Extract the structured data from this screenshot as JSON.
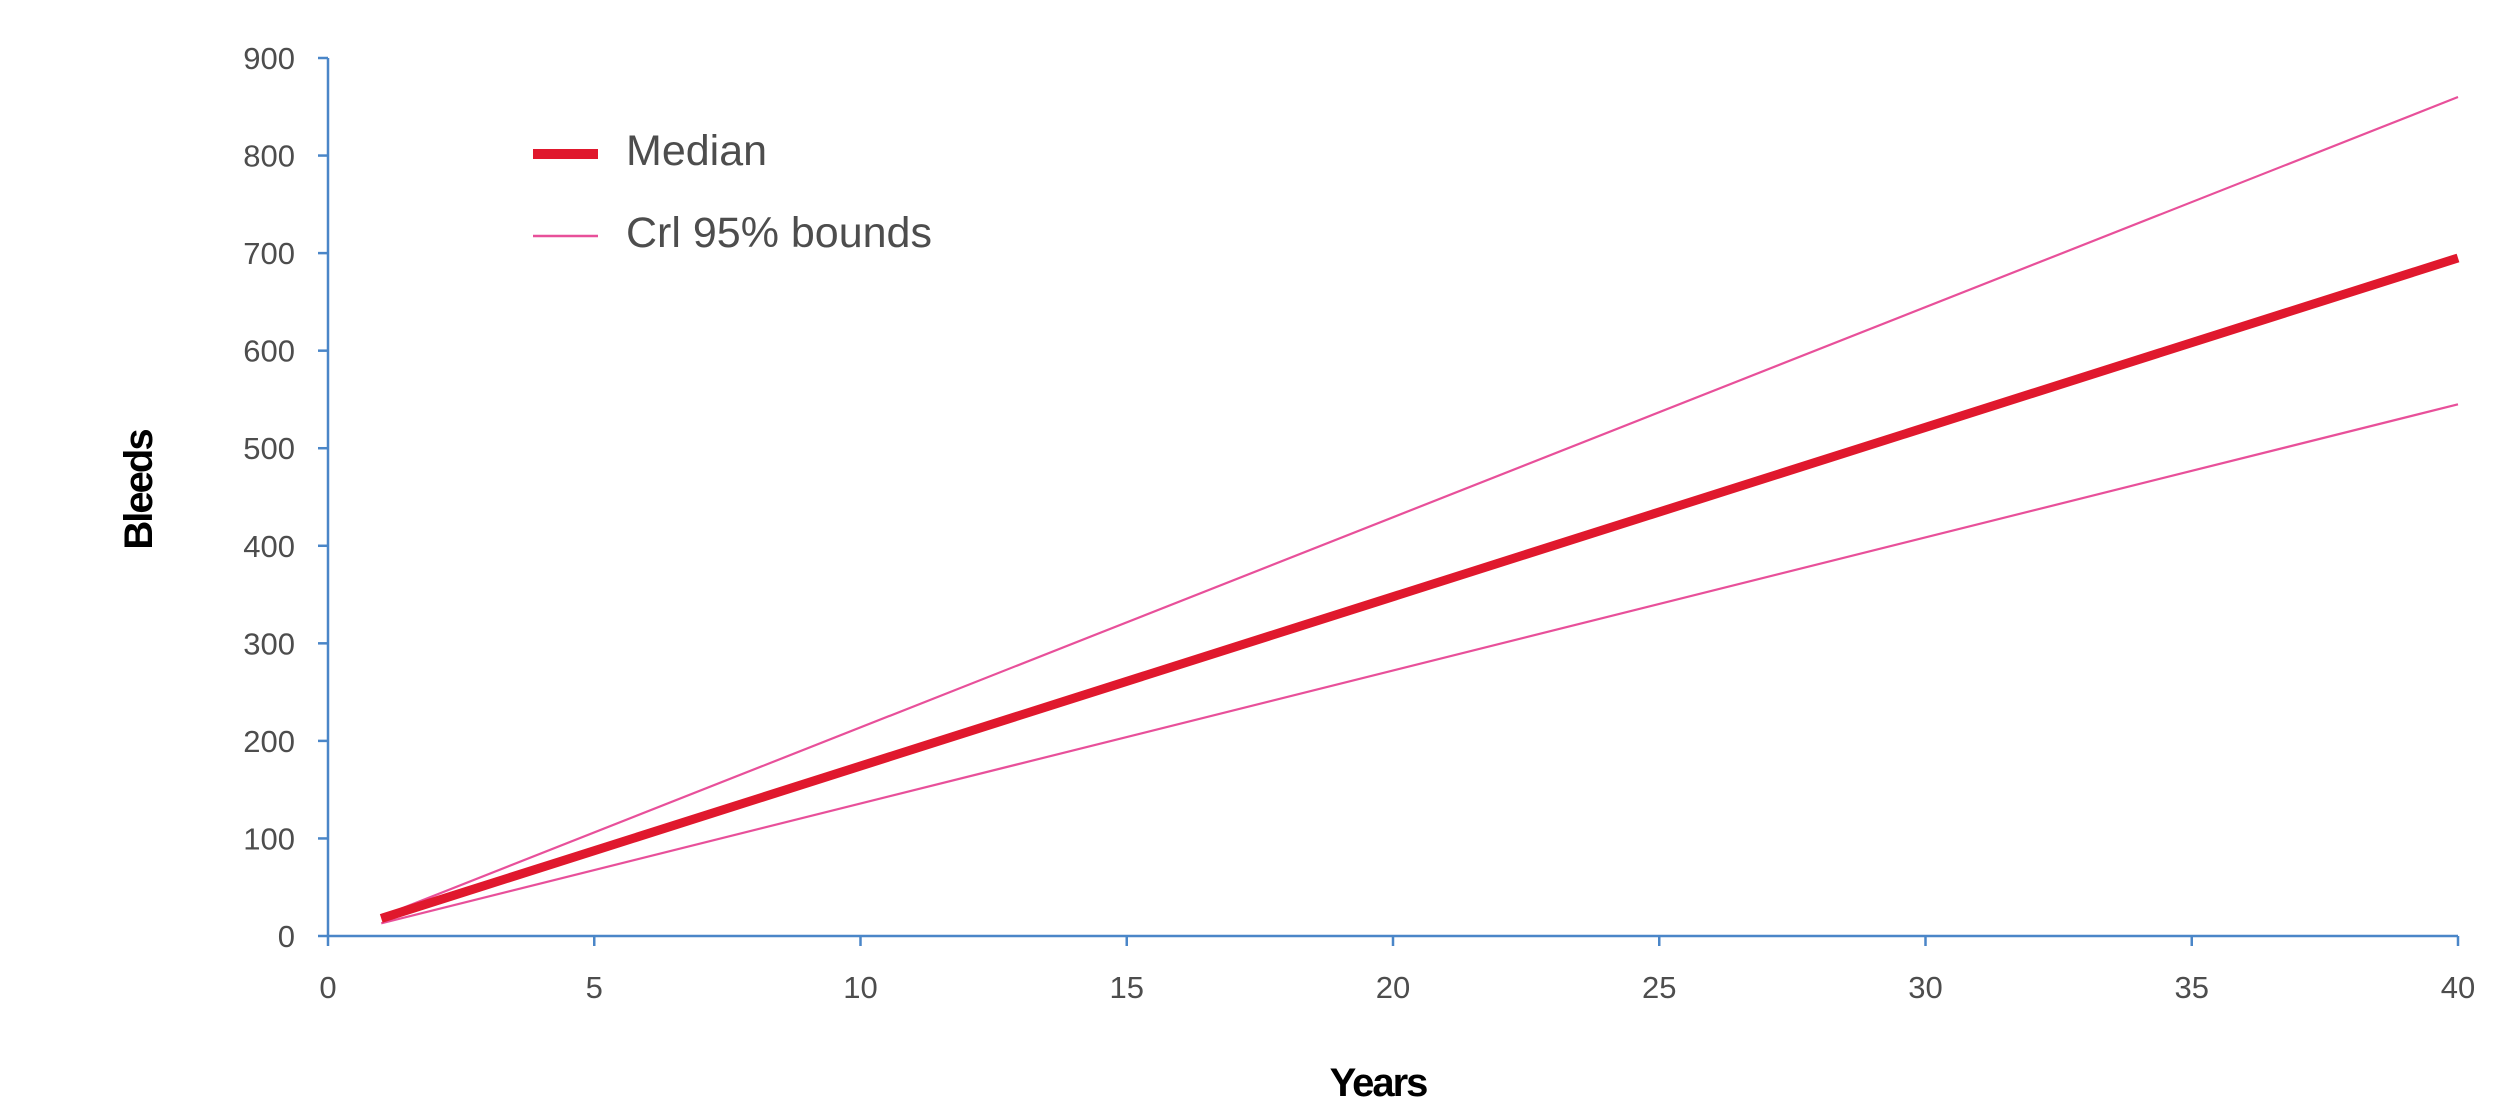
{
  "chart_data": {
    "type": "line",
    "title": "",
    "xlabel": "Years",
    "ylabel": "Bleeds",
    "xlim": [
      0,
      40
    ],
    "ylim": [
      0,
      900
    ],
    "xticks": [
      "0",
      "5",
      "10",
      "15",
      "20",
      "25",
      "30",
      "35",
      "40"
    ],
    "yticks": [
      "0",
      "100",
      "200",
      "300",
      "400",
      "500",
      "600",
      "700",
      "800",
      "900"
    ],
    "grid": false,
    "legend_position": "top-left",
    "series": [
      {
        "name": "Median",
        "role": "median",
        "color": "#e0182d",
        "x": [
          1,
          40
        ],
        "y": [
          18,
          695
        ]
      },
      {
        "name": "Crl 95% bounds",
        "role": "upper",
        "color": "#e8509a",
        "x": [
          1,
          40
        ],
        "y": [
          20,
          860
        ]
      },
      {
        "name": "",
        "role": "lower",
        "color": "#e8509a",
        "x": [
          1,
          40
        ],
        "y": [
          13,
          545
        ]
      }
    ]
  },
  "colors": {
    "axis": "#4a86c8",
    "median": "#e0182d",
    "bounds": "#e8509a"
  }
}
